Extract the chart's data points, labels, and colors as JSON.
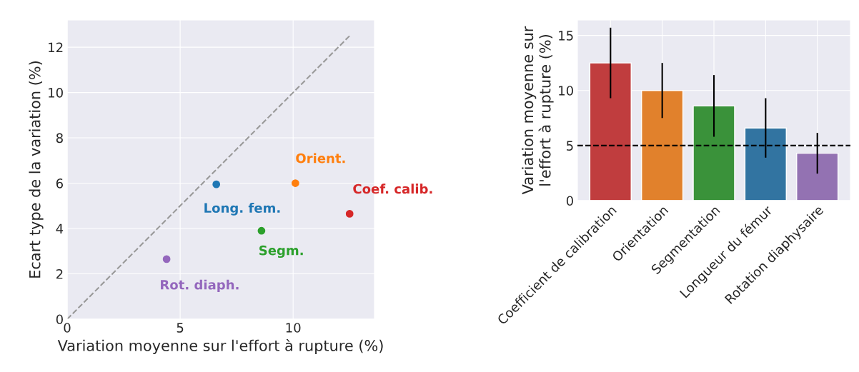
{
  "chart_data": [
    {
      "type": "scatter",
      "xlabel": "Variation moyenne sur l'effort à rupture (%)",
      "ylabel": "Ecart type de la variation (%)",
      "xlim": [
        0,
        13.6
      ],
      "ylim": [
        0,
        13.2
      ],
      "xticks": [
        0,
        5,
        10
      ],
      "yticks": [
        0,
        2,
        4,
        6,
        8,
        10,
        12
      ],
      "grid": true,
      "marker": "circle",
      "series": [
        {
          "name": "Long. fem.",
          "color": "#1f77b4",
          "x": [
            6.6
          ],
          "values": [
            5.95
          ]
        },
        {
          "name": "Orient.",
          "color": "#ff7f0e",
          "x": [
            10.1
          ],
          "values": [
            6.0
          ]
        },
        {
          "name": "Coef. calib.",
          "color": "#d62728",
          "x": [
            12.5
          ],
          "values": [
            4.65
          ]
        },
        {
          "name": "Segm.",
          "color": "#2ca02c",
          "x": [
            8.6
          ],
          "values": [
            3.9
          ]
        },
        {
          "name": "Rot. diaph.",
          "color": "#9467bd",
          "x": [
            4.4
          ],
          "values": [
            2.65
          ]
        },
        {
          "type": "line",
          "marker": "none",
          "color": "#999999",
          "line_style": "dashed",
          "x": [
            0,
            12.5
          ],
          "values": [
            0,
            12.5
          ]
        }
      ]
    },
    {
      "type": "bar",
      "ylabel": "Variation moyenne sur\nl'effort à rupture (%)",
      "categories": [
        "Coefficient de calibration",
        "Orientation",
        "Segmentation",
        "Longueur du fémur",
        "Rotation diaphysaire"
      ],
      "values": [
        12.5,
        10.0,
        8.6,
        6.6,
        4.3
      ],
      "errors": [
        3.2,
        2.5,
        2.8,
        2.7,
        1.85
      ],
      "colors": [
        "#c03d3e",
        "#e1812c",
        "#3a923a",
        "#3274a1",
        "#9372b2"
      ],
      "ylim": [
        0,
        16.4
      ],
      "yticks": [
        0,
        5,
        10,
        15
      ],
      "grid": true,
      "ref_lines": [
        {
          "axis": "y",
          "value": 5,
          "color": "#000000",
          "line_style": "dashed"
        }
      ]
    }
  ]
}
